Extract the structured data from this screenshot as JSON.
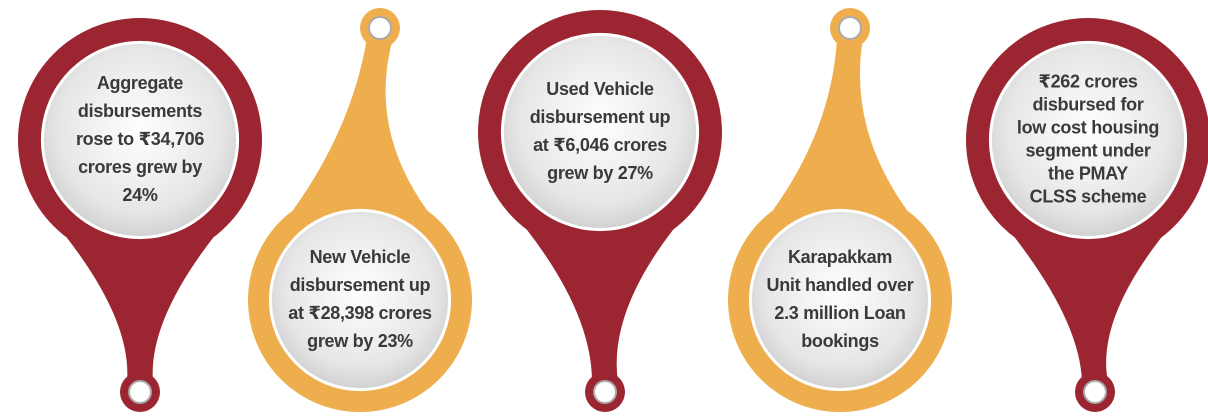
{
  "pins": [
    {
      "lines": [
        "Aggregate",
        "disbursements",
        "rose to ₹34,706",
        "crores grew by",
        "24%"
      ]
    },
    {
      "lines": [
        "New Vehicle",
        "disbursement up",
        "at ₹28,398 crores",
        "grew by 23%"
      ]
    },
    {
      "lines": [
        "Used Vehicle",
        "disbursement up",
        "at ₹6,046 crores",
        "grew by  27%"
      ]
    },
    {
      "lines": [
        "Karapakkam",
        "Unit handled over",
        "2.3 million Loan",
        "bookings"
      ]
    },
    {
      "lines": [
        "₹262 crores",
        "disbursed for",
        "low cost housing",
        "segment under",
        "the PMAY",
        "CLSS scheme"
      ]
    }
  ]
}
